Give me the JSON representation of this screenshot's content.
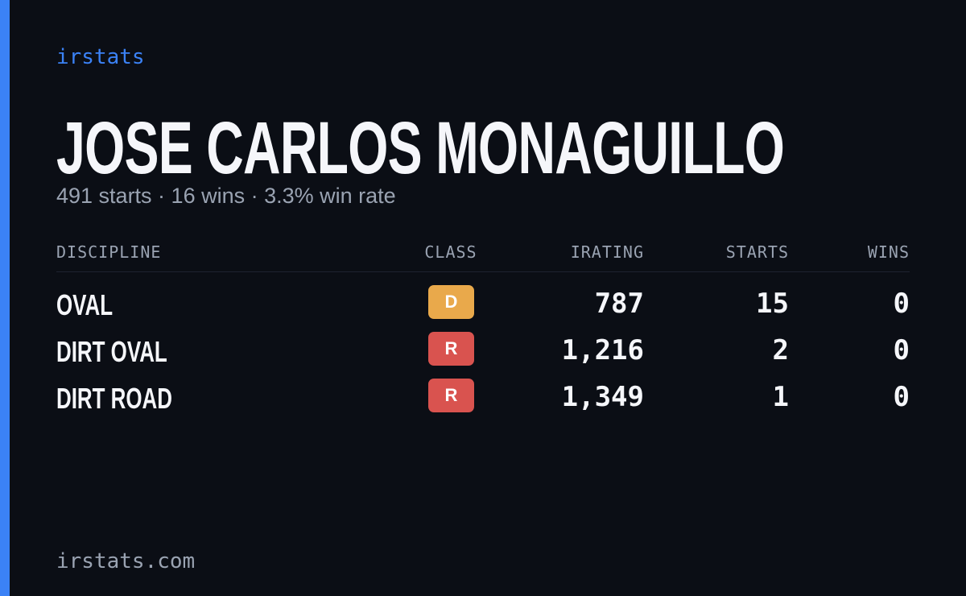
{
  "brand": "irstats",
  "driver": {
    "name": "JOSE CARLOS MONAGUILLO",
    "summary": "491 starts · 16 wins · 3.3% win rate"
  },
  "table": {
    "headers": [
      "DISCIPLINE",
      "CLASS",
      "IRATING",
      "STARTS",
      "WINS"
    ],
    "rows": [
      [
        "OVAL",
        "D",
        "787",
        "15",
        "0"
      ],
      [
        "DIRT OVAL",
        "R",
        "1,216",
        "2",
        "0"
      ],
      [
        "DIRT ROAD",
        "R",
        "1,349",
        "1",
        "0"
      ]
    ]
  },
  "footer": "irstats.com"
}
